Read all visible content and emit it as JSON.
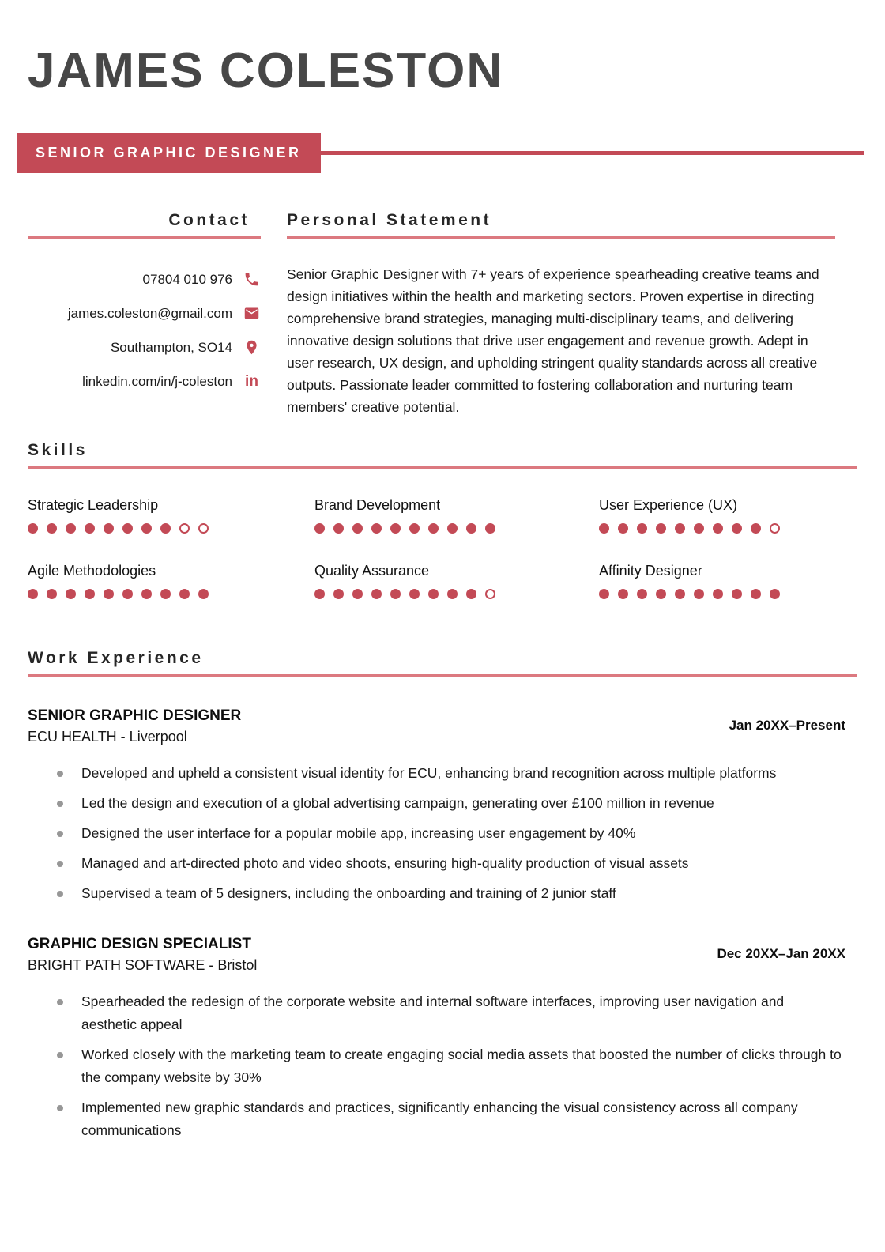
{
  "colors": {
    "accent": "#C34A56",
    "rule": "#DC7980",
    "name": "#474747"
  },
  "header": {
    "name": "JAMES COLESTON",
    "title_badge": "SENIOR GRAPHIC DESIGNER"
  },
  "contact": {
    "heading": "Contact",
    "items": [
      {
        "value": "07804 010 976",
        "icon": "phone-icon"
      },
      {
        "value": "james.coleston@gmail.com",
        "icon": "email-icon"
      },
      {
        "value": "Southampton, SO14",
        "icon": "location-icon"
      },
      {
        "value": "linkedin.com/in/j-coleston",
        "icon": "linkedin-icon"
      }
    ],
    "linkedin_glyph": "in"
  },
  "personal_statement": {
    "heading": "Personal Statement",
    "text": "Senior Graphic Designer with 7+ years of experience spearheading creative teams and design initiatives within the health and marketing sectors. Proven expertise in directing comprehensive brand strategies, managing multi-disciplinary teams, and delivering innovative design solutions that drive user engagement and revenue growth. Adept in user research, UX design, and upholding stringent quality standards across all creative outputs. Passionate leader committed to fostering collaboration and nurturing team members' creative potential."
  },
  "skills": {
    "heading": "Skills",
    "items": [
      {
        "label": "Strategic Leadership",
        "rating": 8,
        "max": 10
      },
      {
        "label": "Brand Development",
        "rating": 10,
        "max": 10
      },
      {
        "label": "User Experience (UX)",
        "rating": 9,
        "max": 10
      },
      {
        "label": "Agile Methodologies",
        "rating": 10,
        "max": 10
      },
      {
        "label": "Quality Assurance",
        "rating": 9,
        "max": 10
      },
      {
        "label": "Affinity Designer",
        "rating": 10,
        "max": 10
      }
    ]
  },
  "work_experience": {
    "heading": "Work Experience",
    "jobs": [
      {
        "title": "SENIOR GRAPHIC DESIGNER",
        "company": "ECU HEALTH - Liverpool",
        "dates": "Jan 20XX–Present",
        "bullets": [
          "Developed and upheld a consistent visual identity for ECU, enhancing brand recognition across multiple platforms",
          "Led the design and execution of a global advertising campaign, generating over £100 million in revenue",
          "Designed the user interface for a popular mobile app, increasing user engagement by 40%",
          "Managed and art-directed photo and video shoots, ensuring high-quality production of visual assets",
          "Supervised a team of 5 designers, including the onboarding and training of 2 junior staff"
        ]
      },
      {
        "title": "GRAPHIC DESIGN SPECIALIST",
        "company": "BRIGHT PATH SOFTWARE - Bristol",
        "dates": "Dec 20XX–Jan 20XX",
        "bullets": [
          "Spearheaded the redesign of the corporate website and internal software interfaces, improving user navigation and aesthetic appeal",
          "Worked closely with the marketing team to create engaging social media assets that boosted the number of clicks through to the company website by 30%",
          "Implemented new graphic standards and practices, significantly enhancing the visual consistency across all company communications"
        ]
      }
    ]
  }
}
